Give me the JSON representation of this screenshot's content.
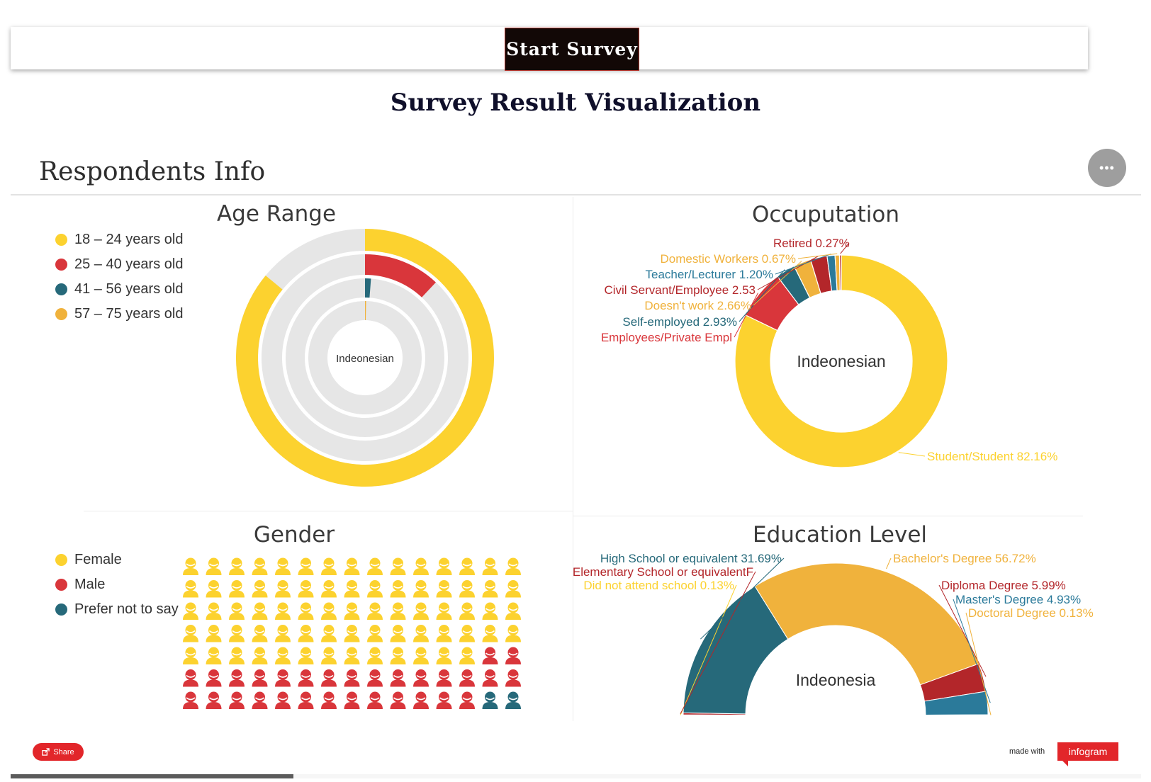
{
  "header": {
    "start_button": "Start Survey",
    "page_title": "Survey Result Visualization",
    "section_title": "Respondents Info",
    "more_icon": "ellipsis-icon"
  },
  "colors": {
    "yellow": "#fcd22f",
    "red": "#d9363b",
    "teal": "#26697a",
    "orange": "#f0b23c",
    "darkred": "#b3262a",
    "blue": "#2b7a9a",
    "track": "#e6e6e6"
  },
  "chart_data": [
    {
      "type": "radial-bar",
      "title": "Age Range",
      "center_label": "Indeonesian",
      "series": [
        {
          "name": "18 – 24 years old",
          "value": 0.86,
          "color": "#fcd22f"
        },
        {
          "name": "25 – 40 years old",
          "value": 0.12,
          "color": "#d9363b"
        },
        {
          "name": "41 – 56 years old",
          "value": 0.012,
          "color": "#26697a"
        },
        {
          "name": "57 – 75 years old",
          "value": 0.003,
          "color": "#f0b23c"
        }
      ]
    },
    {
      "type": "pie",
      "title": "Occuputation",
      "center_label": "Indeonesian",
      "slices": [
        {
          "name": "Student/Student",
          "value": 82.16,
          "label": "Student/Student 82.16%",
          "color": "#fcd22f"
        },
        {
          "name": "Employees/Private Empl",
          "value": 7.58,
          "label": "Employees/Private Empl",
          "color": "#d9363b"
        },
        {
          "name": "Self-employed",
          "value": 2.93,
          "label": "Self-employed 2.93%",
          "color": "#26697a"
        },
        {
          "name": "Doesn't work",
          "value": 2.66,
          "label": "Doesn't work 2.66%",
          "color": "#f0b23c"
        },
        {
          "name": "Civil Servant/Employee",
          "value": 2.53,
          "label": "Civil Servant/Employee 2.53",
          "color": "#b3262a"
        },
        {
          "name": "Teacher/Lecturer",
          "value": 1.2,
          "label": "Teacher/Lecturer 1.20%",
          "color": "#2b7a9a"
        },
        {
          "name": "Domestic Workers",
          "value": 0.67,
          "label": "Domestic Workers 0.67%",
          "color": "#f0b23c"
        },
        {
          "name": "Retired",
          "value": 0.27,
          "label": "Retired 0.27%",
          "color": "#b3262a"
        }
      ]
    },
    {
      "type": "pictogram",
      "title": "Gender",
      "columns": 15,
      "rows": 7,
      "series": [
        {
          "name": "Female",
          "count": 73,
          "color": "#fcd22f"
        },
        {
          "name": "Male",
          "count": 30,
          "color": "#d9363b"
        },
        {
          "name": "Prefer not to say",
          "count": 2,
          "color": "#26697a"
        }
      ]
    },
    {
      "type": "semi-pie",
      "title": "Education Level",
      "center_label": "Indeonesia",
      "slices": [
        {
          "name": "Did not attend school",
          "value": 0.13,
          "label": "Did not attend school 0.13%",
          "color": "#fcd22f"
        },
        {
          "name": "Elementary School or equivalent",
          "value": 0.41,
          "label": "Elementary School or equivalentF",
          "color": "#b3262a"
        },
        {
          "name": "High School or equivalent",
          "value": 31.69,
          "label": "High School or equivalent 31.69%",
          "color": "#26697a"
        },
        {
          "name": "Bachelor's Degree",
          "value": 56.72,
          "label": "Bachelor's Degree 56.72%",
          "color": "#f0b23c"
        },
        {
          "name": "Diploma Degree",
          "value": 5.99,
          "label": "Diploma Degree 5.99%",
          "color": "#b3262a"
        },
        {
          "name": "Master's Degree",
          "value": 4.93,
          "label": "Master's Degree 4.93%",
          "color": "#2b7a9a"
        },
        {
          "name": "Doctoral Degree",
          "value": 0.13,
          "label": "Doctoral Degree 0.13%",
          "color": "#f0b23c"
        }
      ]
    }
  ],
  "footer": {
    "share_label": "Share",
    "share_icon": "share-icon",
    "made_with": "made with",
    "brand": "infogram",
    "progress": 0.25
  }
}
